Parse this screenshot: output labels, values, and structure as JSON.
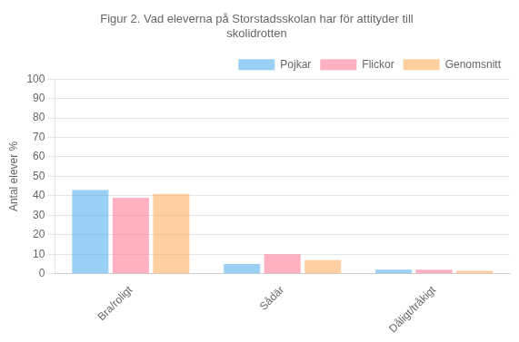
{
  "chart_data": {
    "type": "bar",
    "title": "Figur 2. Vad eleverna på Storstadsskolan har för attityder till\nskolidrotten",
    "ylabel": "Antal elever %",
    "categories": [
      "Bra/roligt",
      "Sådär",
      "Dåligt/tråkigt"
    ],
    "series": [
      {
        "name": "Pojkar",
        "values": [
          43,
          5,
          2
        ]
      },
      {
        "name": "Flickor",
        "values": [
          39,
          10,
          2
        ]
      },
      {
        "name": "Genomsnitt",
        "values": [
          41,
          7,
          1.5
        ]
      }
    ],
    "ylim": [
      0,
      100
    ],
    "yticks": [
      0,
      10,
      20,
      30,
      40,
      50,
      60,
      70,
      80,
      90,
      100
    ],
    "grid": true,
    "legend": "upper right"
  }
}
